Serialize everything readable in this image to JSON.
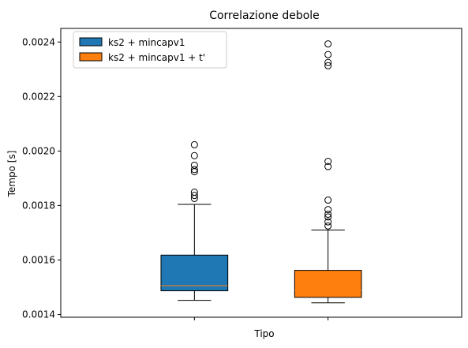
{
  "chart_data": {
    "type": "box",
    "title": "Correlazione debole",
    "xlabel": "Tipo",
    "ylabel": "Tempo [s]",
    "ylim": [
      0.00139,
      0.00245
    ],
    "yticks": [
      0.0014,
      0.0016,
      0.0018,
      0.002,
      0.0022,
      0.0024
    ],
    "ytick_labels": [
      "0.0014",
      "0.0016",
      "0.0018",
      "0.0020",
      "0.0022",
      "0.0024"
    ],
    "legend_position": "top-left",
    "grid": false,
    "series": [
      {
        "name": "ks2 + mincapv1",
        "color": "#1f77b4",
        "whisker_low": 0.001452,
        "q1": 0.001487,
        "median": 0.001506,
        "q3": 0.001618,
        "whisker_high": 0.001804,
        "outliers": [
          0.001826,
          0.001837,
          0.001849,
          0.001924,
          0.001932,
          0.001948,
          0.001983,
          0.002023
        ]
      },
      {
        "name": "ks2 + mincapv1 + t'",
        "color": "#ff7f0e",
        "whisker_low": 0.001443,
        "q1": 0.001463,
        "median": 0.001489,
        "q3": 0.001562,
        "whisker_high": 0.00171,
        "outliers": [
          0.001725,
          0.00174,
          0.001758,
          0.001768,
          0.001785,
          0.00182,
          0.001943,
          0.001962,
          0.002313,
          0.002325,
          0.002354,
          0.002393
        ]
      }
    ],
    "median_color": "#ff7f0e"
  }
}
